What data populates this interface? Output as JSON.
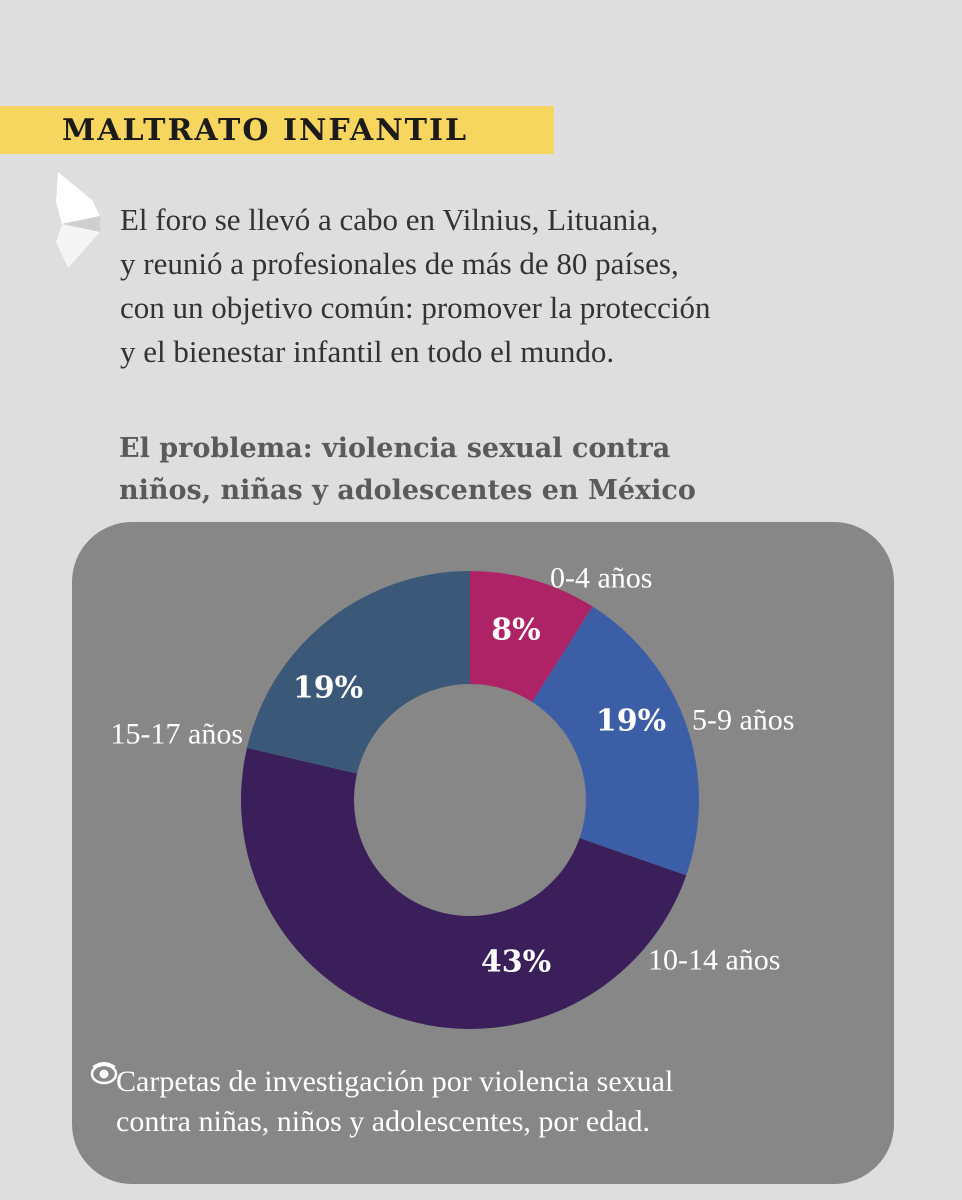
{
  "header": {
    "title": "MALTRATO INFANTIL"
  },
  "intro": {
    "lines": [
      "El foro se llevó a cabo en Vilnius, Lituania,",
      "y reunió a profesionales de más de 80 países,",
      "con un objetivo común: promover la protección",
      "y el bienestar infantil en todo el mundo."
    ]
  },
  "chart_data": {
    "type": "pie",
    "variant": "donut",
    "title": "El problema: violencia sexual contra niños, niñas y adolescentes en México",
    "title_lines": [
      "El problema: violencia sexual contra",
      "niños, niñas y adolescentes en México"
    ],
    "slices": [
      {
        "label": "0-4 años",
        "value": 8,
        "display": "8%",
        "color": "#ad2366"
      },
      {
        "label": "5-9 años",
        "value": 19,
        "display": "19%",
        "color": "#3b5ea6"
      },
      {
        "label": "10-14 años",
        "value": 43,
        "display": "43%",
        "color": "#3a1f5a"
      },
      {
        "label": "15-17 años",
        "value": 19,
        "display": "19%",
        "color": "#3b5878"
      }
    ],
    "caption_lines": [
      "Carpetas de investigación por violencia sexual",
      "contra niñas, niños y adolescentes, por edad."
    ],
    "legend": "none"
  },
  "colors": {
    "banner": "#f7d65f",
    "panel": "#878787",
    "background": "#dedede"
  },
  "icons": {
    "intro": "arrow-icon",
    "caption": "eye-icon"
  }
}
